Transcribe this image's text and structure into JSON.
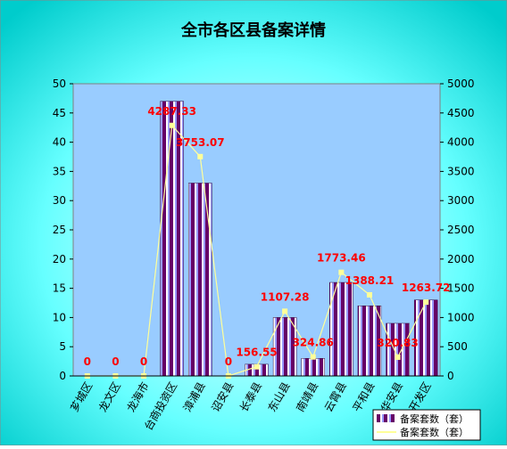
{
  "chart_data": {
    "type": "bar_line",
    "title": "全市各区县备案详情",
    "categories": [
      "芗城区",
      "龙文区",
      "龙海市",
      "台商投资区",
      "漳浦县",
      "诏安县",
      "长泰县",
      "东山县",
      "南靖县",
      "云霄县",
      "平和县",
      "华安县",
      "开发区"
    ],
    "series": [
      {
        "name": "备案套数（套）",
        "type": "bar",
        "color": "#660066",
        "values": [
          0,
          0,
          0,
          47,
          33,
          0,
          2,
          10,
          3,
          16,
          12,
          9,
          13
        ]
      },
      {
        "name": "备案套数（套）",
        "type": "line",
        "axis": "y2",
        "color": "#ffff99",
        "values": [
          0,
          0,
          0,
          4287.33,
          3753.07,
          0,
          156.55,
          1107.28,
          324.86,
          1773.46,
          1388.21,
          320.83,
          1263.72
        ]
      }
    ],
    "ylim": [
      0,
      50
    ],
    "yticks": [
      0,
      5,
      10,
      15,
      20,
      25,
      30,
      35,
      40,
      45,
      50
    ],
    "y2lim": [
      0,
      5000
    ],
    "y2ticks": [
      0,
      500,
      1000,
      1500,
      2000,
      2500,
      3000,
      3500,
      4000,
      4500,
      5000
    ]
  }
}
